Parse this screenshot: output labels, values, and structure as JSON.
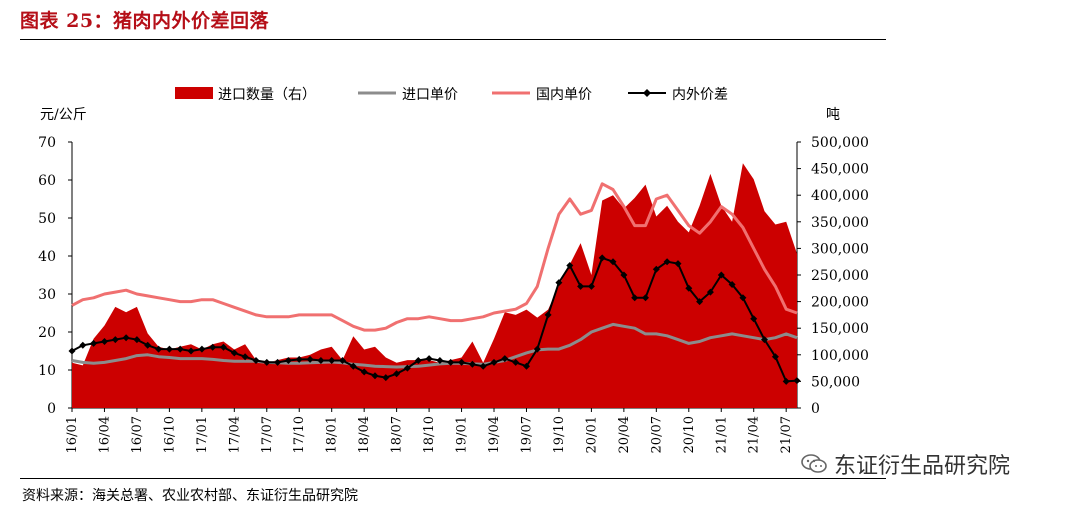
{
  "header": {
    "title": "图表 25：猪肉内外价差回落"
  },
  "footer": {
    "source": "资料来源：海关总署、农业农村部、东证衍生品研究院"
  },
  "watermark": {
    "text": "东证衍生品研究院",
    "icon": "wechat-icon"
  },
  "colors": {
    "import_volume": "#cc0000",
    "import_price": "#8c8c8c",
    "domestic_price": "#f07070",
    "spread": "#000000"
  },
  "chart_data": {
    "type": "line",
    "title": "图表 25：猪肉内外价差回落",
    "y_left_label": "元/公斤",
    "y_right_label": "吨",
    "y_left_lim": [
      0,
      70
    ],
    "y_left_ticks": [
      "0",
      "10",
      "20",
      "30",
      "40",
      "50",
      "60",
      "70"
    ],
    "y_right_lim": [
      0,
      500000
    ],
    "y_right_ticks": [
      "0",
      "50,000",
      "100,000",
      "150,000",
      "200,000",
      "250,000",
      "300,000",
      "350,000",
      "400,000",
      "450,000",
      "500,000"
    ],
    "legend": [
      "进口数量（右）",
      "进口单价",
      "国内单价",
      "内外价差"
    ],
    "legend_position": "top",
    "x_tick_labels": [
      "16/01",
      "16/04",
      "16/07",
      "16/10",
      "17/01",
      "17/04",
      "17/07",
      "17/10",
      "18/01",
      "18/04",
      "18/07",
      "18/10",
      "19/01",
      "19/04",
      "19/07",
      "19/10",
      "20/01",
      "20/04",
      "20/07",
      "20/10",
      "21/01",
      "21/04",
      "21/07"
    ],
    "x": [
      "16/01",
      "16/02",
      "16/03",
      "16/04",
      "16/05",
      "16/06",
      "16/07",
      "16/08",
      "16/09",
      "16/10",
      "16/11",
      "16/12",
      "17/01",
      "17/02",
      "17/03",
      "17/04",
      "17/05",
      "17/06",
      "17/07",
      "17/08",
      "17/09",
      "17/10",
      "17/11",
      "17/12",
      "18/01",
      "18/02",
      "18/03",
      "18/04",
      "18/05",
      "18/06",
      "18/07",
      "18/08",
      "18/09",
      "18/10",
      "18/11",
      "18/12",
      "19/01",
      "19/02",
      "19/03",
      "19/04",
      "19/05",
      "19/06",
      "19/07",
      "19/08",
      "19/09",
      "19/10",
      "19/11",
      "19/12",
      "20/01",
      "20/02",
      "20/03",
      "20/04",
      "20/05",
      "20/06",
      "20/07",
      "20/08",
      "20/09",
      "20/10",
      "20/11",
      "20/12",
      "21/01",
      "21/02",
      "21/03",
      "21/04",
      "21/05",
      "21/06",
      "21/07",
      "21/08"
    ],
    "series": [
      {
        "name": "进口数量（右）",
        "type": "area",
        "axis": "right",
        "values": [
          85000,
          80000,
          130000,
          155000,
          190000,
          180000,
          190000,
          140000,
          115000,
          110000,
          115000,
          120000,
          110000,
          120000,
          125000,
          110000,
          120000,
          90000,
          85000,
          90000,
          95000,
          95000,
          100000,
          110000,
          115000,
          90000,
          135000,
          110000,
          115000,
          95000,
          85000,
          90000,
          90000,
          90000,
          85000,
          90000,
          95000,
          125000,
          85000,
          130000,
          180000,
          175000,
          185000,
          170000,
          185000,
          230000,
          270000,
          310000,
          250000,
          390000,
          400000,
          375000,
          395000,
          420000,
          360000,
          380000,
          350000,
          330000,
          380000,
          440000,
          380000,
          350000,
          460000,
          430000,
          370000,
          345000,
          350000,
          290000
        ]
      },
      {
        "name": "进口单价",
        "type": "line",
        "axis": "left",
        "values": [
          12.5,
          12.0,
          11.8,
          12.0,
          12.5,
          13.0,
          13.8,
          14.0,
          13.5,
          13.3,
          13.0,
          13.0,
          13.0,
          12.8,
          12.5,
          12.3,
          12.3,
          12.3,
          12.0,
          11.9,
          11.8,
          11.8,
          11.9,
          12.0,
          12.1,
          11.9,
          11.5,
          11.3,
          11.0,
          10.9,
          10.8,
          10.9,
          11.0,
          11.3,
          11.6,
          11.8,
          11.8,
          11.6,
          11.5,
          12.0,
          12.5,
          13.5,
          14.5,
          15.3,
          15.5,
          15.5,
          16.5,
          18.0,
          20.0,
          21.0,
          22.0,
          21.5,
          21.0,
          19.5,
          19.5,
          19.0,
          18.0,
          17.0,
          17.5,
          18.5,
          19.0,
          19.5,
          19.0,
          18.5,
          18.0,
          18.5,
          19.5,
          18.5
        ]
      },
      {
        "name": "国内单价",
        "type": "line",
        "axis": "left",
        "values": [
          27.0,
          28.5,
          29.0,
          30.0,
          30.5,
          31.0,
          30.0,
          29.5,
          29.0,
          28.5,
          28.0,
          28.0,
          28.5,
          28.5,
          27.5,
          26.5,
          25.5,
          24.5,
          24.0,
          24.0,
          24.0,
          24.5,
          24.5,
          24.5,
          24.5,
          23.0,
          21.5,
          20.5,
          20.5,
          21.0,
          22.5,
          23.5,
          23.5,
          24.0,
          23.5,
          23.0,
          23.0,
          23.5,
          24.0,
          25.0,
          25.5,
          26.0,
          27.5,
          32.0,
          42.0,
          51.0,
          55.0,
          51.0,
          52.0,
          59.0,
          57.5,
          53.0,
          48.0,
          48.0,
          55.0,
          56.0,
          52.0,
          48.0,
          46.0,
          49.0,
          53.0,
          51.0,
          47.5,
          42.0,
          36.5,
          32.0,
          26.0,
          25.0
        ]
      },
      {
        "name": "内外价差",
        "type": "line",
        "axis": "left",
        "values": [
          15.0,
          16.5,
          17.0,
          17.5,
          18.0,
          18.5,
          18.0,
          16.5,
          15.5,
          15.5,
          15.5,
          15.0,
          15.5,
          16.0,
          16.0,
          14.5,
          13.5,
          12.5,
          12.0,
          12.0,
          12.5,
          12.8,
          12.8,
          12.5,
          12.5,
          12.5,
          11.0,
          9.5,
          8.5,
          8.0,
          9.0,
          10.5,
          12.5,
          13.0,
          12.5,
          12.0,
          12.0,
          11.5,
          11.0,
          12.0,
          13.0,
          12.0,
          11.0,
          15.5,
          24.5,
          33.0,
          37.5,
          32.0,
          32.0,
          39.5,
          38.5,
          35.0,
          29.0,
          29.0,
          36.5,
          38.5,
          38.0,
          31.5,
          28.0,
          30.5,
          35.0,
          32.5,
          29.0,
          23.5,
          18.0,
          13.5,
          7.0,
          7.2
        ]
      }
    ]
  }
}
